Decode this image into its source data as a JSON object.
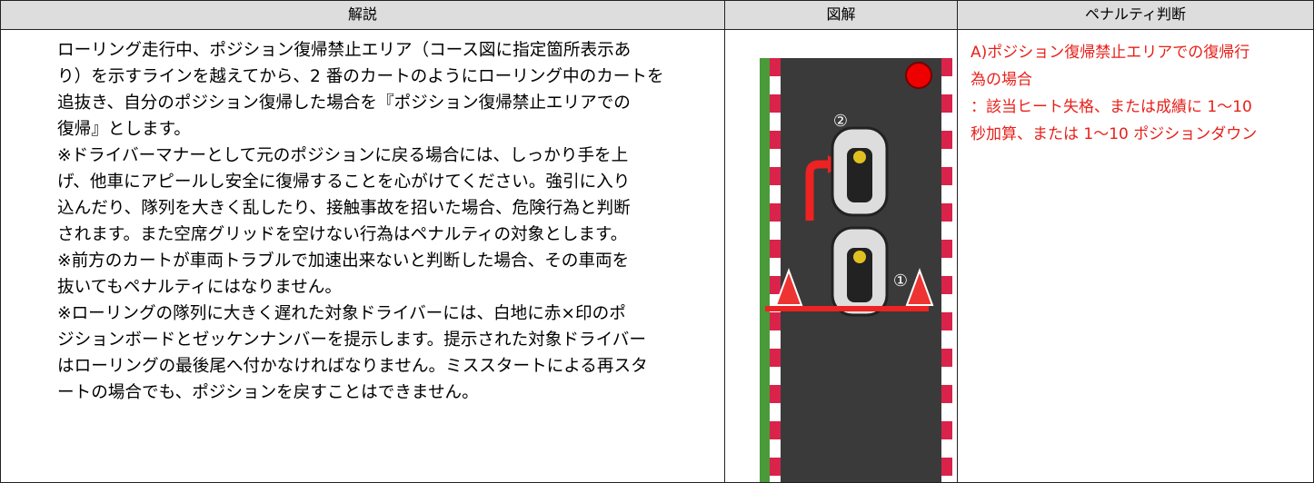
{
  "table": {
    "headers": [
      "解説",
      "図解",
      "ペナルティ判断"
    ],
    "explanation": [
      "ローリング走行中、ポジション復帰禁止エリア（コース図に指定箇所表示あ",
      "り）を示すラインを越えてから、2 番のカートのようにローリング中のカートを",
      "追抜き、自分のポジション復帰した場合を『ポジション復帰禁止エリアでの",
      "復帰』とします。",
      "※ドライバーマナーとして元のポジションに戻る場合には、しっかり手を上",
      "げ、他車にアピールし安全に復帰することを心がけてください。強引に入り",
      "込んだり、隊列を大きく乱したり、接触事故を招いた場合、危険行為と判断",
      "されます。また空席グリッドを空けない行為はペナルティの対象とします。",
      "※前方のカートが車両トラブルで加速出来ないと判断した場合、その車両を",
      "抜いてもペナルティにはなりません。",
      "※ローリングの隊列に大きく遅れた対象ドライバーには、白地に赤×印のポ",
      "ジションボードとゼッケンナンバーを提示します。提示された対象ドライバー",
      "はローリングの最後尾へ付かなければなりません。ミススタートによる再スタ",
      "ートの場合でも、ポジションを戻すことはできません。"
    ],
    "diagram": {
      "labels": [
        "②",
        "①"
      ]
    },
    "penalty": [
      "A)ポジション復帰禁止エリアでの復帰行",
      "為の場合",
      "：該当ヒート失格、または成績に 1～10",
      "秒加算、または 1～10 ポジションダウン"
    ]
  }
}
